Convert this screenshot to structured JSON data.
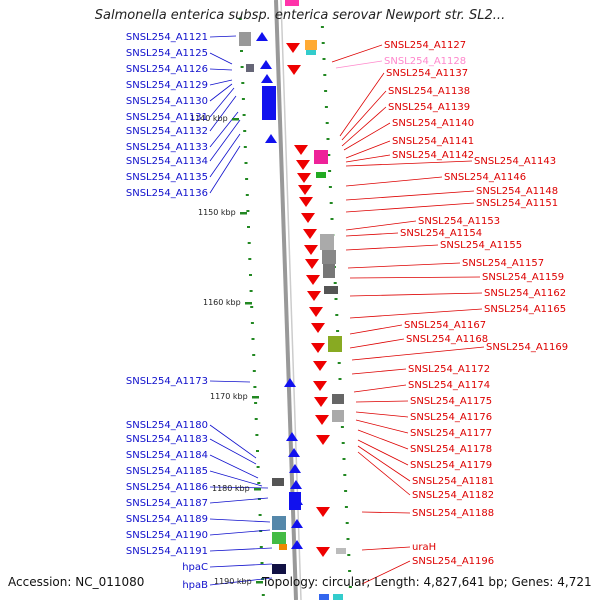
{
  "title": "Salmonella enterica subsp. enterica serovar Newport str. SL2...",
  "footer": {
    "accession": "Accession: NC_011080",
    "topology": "Topology: circular; Length: 4,827,641 bp; Genes: 4,721"
  },
  "colors": {
    "left_strand": "#1111ee",
    "right_strand": "#ee0000",
    "left_label": "#1010cc",
    "right_label": "#dd0000",
    "highlight_label": "#ff88cc",
    "tick": "#228822",
    "backbone": "#999999"
  },
  "kbp_marks": [
    {
      "label": "1140 kbp",
      "kb": 1140
    },
    {
      "label": "1150 kbp",
      "kb": 1150
    },
    {
      "label": "1160 kbp",
      "kb": 1160
    },
    {
      "label": "1170 kbp",
      "kb": 1170
    },
    {
      "label": "1180 kbp",
      "kb": 1180
    },
    {
      "label": "1190 kbp",
      "kb": 1190
    }
  ],
  "left_genes": [
    "SNSL254_A1121",
    "SNSL254_A1125",
    "SNSL254_A1126",
    "SNSL254_A1129",
    "SNSL254_A1130",
    "SNSL254_A1131",
    "SNSL254_A1132",
    "SNSL254_A1133",
    "SNSL254_A1134",
    "SNSL254_A1135",
    "SNSL254_A1136",
    "SNSL254_A1173",
    "SNSL254_A1180",
    "SNSL254_A1183",
    "SNSL254_A1184",
    "SNSL254_A1185",
    "SNSL254_A1186",
    "SNSL254_A1187",
    "SNSL254_A1189",
    "SNSL254_A1190",
    "SNSL254_A1191",
    "hpaC",
    "hpaB"
  ],
  "right_genes": [
    "SNSL254_A1127",
    "SNSL254_A1128",
    "SNSL254_A1137",
    "SNSL254_A1138",
    "SNSL254_A1139",
    "SNSL254_A1140",
    "SNSL254_A1141",
    "SNSL254_A1142",
    "SNSL254_A1143",
    "SNSL254_A1146",
    "SNSL254_A1148",
    "SNSL254_A1151",
    "SNSL254_A1153",
    "SNSL254_A1154",
    "SNSL254_A1155",
    "SNSL254_A1157",
    "SNSL254_A1159",
    "SNSL254_A1162",
    "SNSL254_A1165",
    "SNSL254_A1167",
    "SNSL254_A1168",
    "SNSL254_A1169",
    "SNSL254_A1172",
    "SNSL254_A1174",
    "SNSL254_A1175",
    "SNSL254_A1176",
    "SNSL254_A1177",
    "SNSL254_A1178",
    "SNSL254_A1179",
    "SNSL254_A1181",
    "SNSL254_A1182",
    "SNSL254_A1188",
    "uraH",
    "SNSL254_A1196"
  ],
  "highlighted_gene": "SNSL254_A1128"
}
